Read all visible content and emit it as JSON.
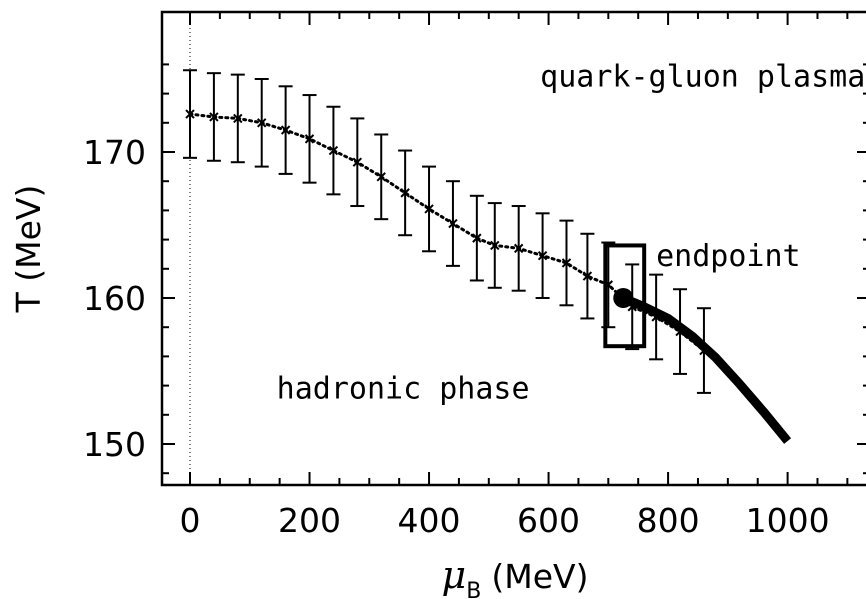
{
  "chart_data": {
    "type": "line",
    "xlabel_symbol": "μ",
    "xlabel_subscript": "B",
    "xlabel_unit": "(MeV)",
    "ylabel": "T (MeV)",
    "xlim": [
      -40,
      1125
    ],
    "ylim": [
      147,
      177
    ],
    "xticks": [
      0,
      200,
      400,
      600,
      800,
      1000
    ],
    "yticks": [
      150,
      160,
      170
    ],
    "grid": false,
    "series": [
      {
        "style": "dotted-with-crosses-and-errorbars",
        "x": [
          0,
          40,
          80,
          120,
          160,
          200,
          240,
          280,
          320,
          360,
          400,
          440,
          480,
          510,
          550,
          590,
          630,
          665,
          700,
          740,
          780,
          820,
          860
        ],
        "y": [
          172.6,
          172.4,
          172.3,
          172.0,
          171.5,
          170.9,
          170.1,
          169.3,
          168.3,
          167.2,
          166.1,
          165.1,
          164.1,
          163.6,
          163.4,
          162.9,
          162.4,
          161.5,
          160.9,
          159.4,
          158.7,
          157.7,
          156.4
        ],
        "err": [
          3.0,
          3.0,
          3.0,
          3.0,
          3.0,
          3.0,
          3.0,
          3.0,
          2.9,
          2.9,
          2.9,
          2.9,
          2.9,
          2.9,
          2.9,
          2.9,
          2.9,
          2.9,
          2.9,
          2.9,
          2.9,
          2.9,
          2.9
        ]
      },
      {
        "style": "thick-solid",
        "x": [
          725,
          760,
          800,
          840,
          880,
          920,
          960,
          1000
        ],
        "y": [
          160.0,
          159.4,
          158.6,
          157.4,
          155.9,
          154.1,
          152.2,
          150.2
        ]
      }
    ],
    "endpoint": {
      "x": 725,
      "y": 160.0,
      "box_x": [
        695,
        760
      ],
      "box_y": [
        156.7,
        163.6
      ]
    },
    "annotations": [
      {
        "text": "quark-gluon plasma",
        "x": 1130,
        "y": 174.5,
        "anchor": "end"
      },
      {
        "text": "endpoint",
        "x": 780,
        "y": 162.2,
        "anchor": "start"
      },
      {
        "text": "hadronic phase",
        "x": 145,
        "y": 153.1,
        "anchor": "start"
      }
    ]
  }
}
